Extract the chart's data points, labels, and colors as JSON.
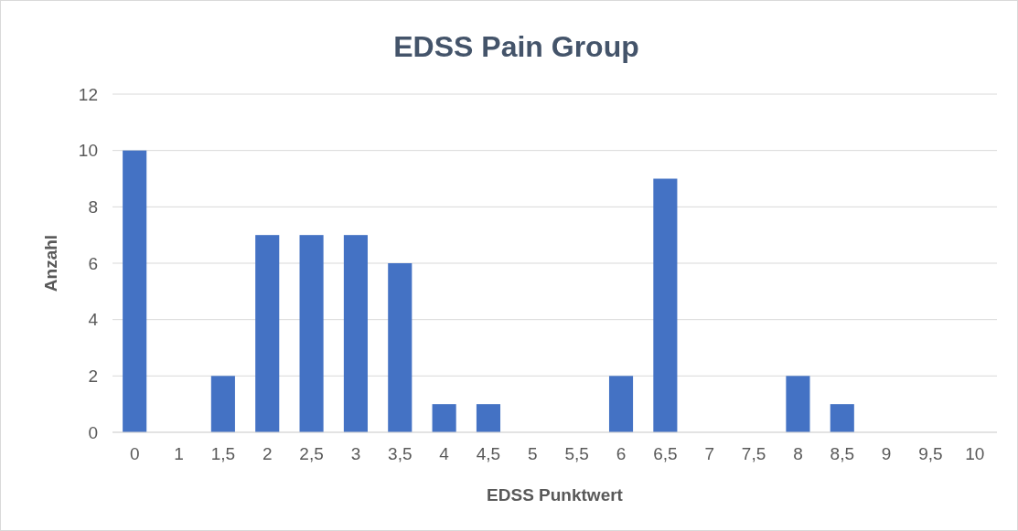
{
  "chart_data": {
    "type": "bar",
    "title": "EDSS Pain Group",
    "xlabel": "EDSS Punktwert",
    "ylabel": "Anzahl",
    "categories": [
      "0",
      "1",
      "1,5",
      "2",
      "2,5",
      "3",
      "3,5",
      "4",
      "4,5",
      "5",
      "5,5",
      "6",
      "6,5",
      "7",
      "7,5",
      "8",
      "8,5",
      "9",
      "9,5",
      "10"
    ],
    "values": [
      10,
      0,
      2,
      7,
      7,
      7,
      6,
      1,
      1,
      0,
      0,
      2,
      9,
      0,
      0,
      2,
      1,
      0,
      0,
      0
    ],
    "color": "#4472c4",
    "ylim": [
      0,
      12
    ],
    "yticks": [
      0,
      2,
      4,
      6,
      8,
      10,
      12
    ],
    "grid": "y"
  }
}
